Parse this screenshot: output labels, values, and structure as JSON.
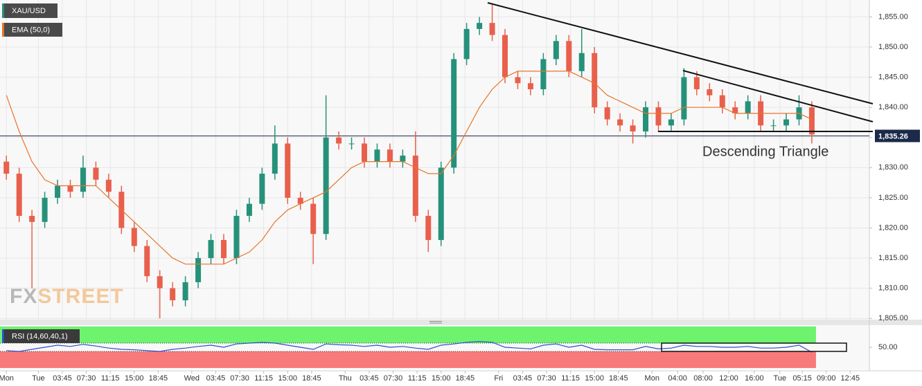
{
  "chart_data": {
    "type": "candlestick",
    "symbol": "XAU/USD",
    "indicator": "EMA (50,0)",
    "rsi_label": "RSI (14,60,40,1)",
    "annotation": "Descending Triangle",
    "watermark": {
      "prefix": "FX",
      "suffix": "STREET"
    },
    "up_color": "#26917a",
    "down_color": "#e8604c",
    "ema_color": "#e8742a",
    "rsi_color": "#2a4fd0",
    "grid": true,
    "xlim": [
      -6,
      130
    ],
    "ylim": [
      1804.8,
      1857.8
    ],
    "rsi_ylim": [
      0,
      100
    ],
    "rsi_levels": [
      40,
      60
    ],
    "last_price": {
      "value": 1835.26,
      "label": "1,835.26"
    },
    "xticks": [
      {
        "value": -5,
        "label": "Mon"
      },
      {
        "value": 0,
        "label": "Tue"
      },
      {
        "value": 3.75,
        "label": "03:45"
      },
      {
        "value": 7.5,
        "label": "07:30"
      },
      {
        "value": 11.25,
        "label": "11:15"
      },
      {
        "value": 15,
        "label": "15:00"
      },
      {
        "value": 18.75,
        "label": "18:45"
      },
      {
        "value": 24,
        "label": "Wed"
      },
      {
        "value": 27.75,
        "label": "03:45"
      },
      {
        "value": 31.5,
        "label": "07:30"
      },
      {
        "value": 35.25,
        "label": "11:15"
      },
      {
        "value": 39,
        "label": "15:00"
      },
      {
        "value": 42.75,
        "label": "18:45"
      },
      {
        "value": 48,
        "label": "Thu"
      },
      {
        "value": 51.75,
        "label": "03:45"
      },
      {
        "value": 55.5,
        "label": "07:30"
      },
      {
        "value": 59.25,
        "label": "11:15"
      },
      {
        "value": 63,
        "label": "15:00"
      },
      {
        "value": 66.75,
        "label": "18:45"
      },
      {
        "value": 72,
        "label": "Fri"
      },
      {
        "value": 75.75,
        "label": "03:45"
      },
      {
        "value": 79.5,
        "label": "07:30"
      },
      {
        "value": 83.25,
        "label": "11:15"
      },
      {
        "value": 87,
        "label": "15:00"
      },
      {
        "value": 90.75,
        "label": "18:45"
      },
      {
        "value": 96,
        "label": "Mon"
      },
      {
        "value": 100,
        "label": "04:00"
      },
      {
        "value": 104,
        "label": "08:00"
      },
      {
        "value": 108,
        "label": "12:00"
      },
      {
        "value": 112,
        "label": "16:00"
      },
      {
        "value": 116,
        "label": "Tue"
      },
      {
        "value": 119.5,
        "label": "05:15"
      },
      {
        "value": 123.25,
        "label": "09:00"
      },
      {
        "value": 127,
        "label": "12:45"
      }
    ],
    "yticks": [
      {
        "value": 1805,
        "label": "1,805.00"
      },
      {
        "value": 1810,
        "label": "1,810.00"
      },
      {
        "value": 1815,
        "label": "1,815.00"
      },
      {
        "value": 1820,
        "label": "1,820.00"
      },
      {
        "value": 1825,
        "label": "1,825.00"
      },
      {
        "value": 1830,
        "label": "1,830.00"
      },
      {
        "value": 1835,
        "label": "1,835.00"
      },
      {
        "value": 1840,
        "label": "1,840.00"
      },
      {
        "value": 1845,
        "label": "1,845.00"
      },
      {
        "value": 1850,
        "label": "1,850.00"
      },
      {
        "value": 1855,
        "label": "1,855.00"
      }
    ],
    "rsi_yticks": [
      {
        "value": 50,
        "label": "50.00"
      }
    ],
    "x": [
      -5,
      -3,
      -1,
      1,
      3,
      5,
      7,
      9,
      11,
      13,
      15,
      17,
      19,
      21,
      23,
      25,
      27,
      29,
      31,
      33,
      35,
      37,
      39,
      41,
      43,
      45,
      47,
      49,
      51,
      53,
      55,
      57,
      59,
      61,
      63,
      65,
      67,
      69,
      71,
      73,
      75,
      77,
      79,
      81,
      83,
      85,
      87,
      89,
      91,
      93,
      95,
      97,
      99,
      101,
      103,
      105,
      107,
      109,
      111,
      113,
      115,
      117,
      119,
      121
    ],
    "open": [
      1831,
      1829,
      1822,
      1821,
      1825,
      1827,
      1826,
      1830,
      1828,
      1826,
      1820,
      1817,
      1812,
      1810,
      1808,
      1811,
      1815,
      1818,
      1815,
      1822,
      1824,
      1829,
      1834,
      1825,
      1824,
      1819,
      1835,
      1834,
      1834,
      1831,
      1833,
      1831,
      1832,
      1822,
      1818,
      1830,
      1848,
      1853,
      1854,
      1852,
      1845,
      1844,
      1843,
      1848,
      1851,
      1846,
      1849,
      1840,
      1838,
      1837,
      1836,
      1840,
      1837,
      1838,
      1845,
      1843,
      1842,
      1840,
      1839,
      1841,
      1837,
      1837,
      1838,
      1840
    ],
    "high": [
      1832,
      1830,
      1823,
      1826,
      1828,
      1828,
      1832,
      1831,
      1829,
      1827,
      1821,
      1818,
      1813,
      1811,
      1812,
      1816,
      1819,
      1819,
      1823,
      1825,
      1830,
      1837,
      1835,
      1826,
      1825,
      1842,
      1836,
      1835,
      1835,
      1834,
      1834,
      1833,
      1836,
      1823,
      1831,
      1849,
      1854,
      1855,
      1857,
      1853,
      1846,
      1845,
      1849,
      1852,
      1852,
      1853,
      1850,
      1841,
      1839,
      1838,
      1841,
      1841,
      1839,
      1846.5,
      1846,
      1844,
      1843,
      1841,
      1842,
      1842,
      1838,
      1839,
      1842,
      1841
    ],
    "low": [
      1828,
      1821,
      1810,
      1820,
      1824,
      1825,
      1825,
      1827,
      1825,
      1819,
      1816,
      1811,
      1805,
      1807,
      1807,
      1810,
      1814,
      1814,
      1814,
      1821,
      1823,
      1828,
      1824,
      1823,
      1814,
      1818,
      1833,
      1833,
      1830,
      1830,
      1830,
      1830,
      1821,
      1816,
      1817,
      1829,
      1847,
      1852,
      1851,
      1844,
      1843,
      1842,
      1842,
      1847,
      1845,
      1845,
      1839,
      1837,
      1836,
      1834,
      1835,
      1836,
      1836,
      1837,
      1842,
      1841,
      1839,
      1838,
      1838,
      1836,
      1836,
      1836,
      1837,
      1834
    ],
    "close": [
      1829,
      1822,
      1821,
      1825,
      1827,
      1826,
      1830,
      1828,
      1826,
      1820,
      1817,
      1812,
      1810,
      1808,
      1811,
      1815,
      1818,
      1815,
      1822,
      1824,
      1829,
      1834,
      1825,
      1824,
      1819,
      1835,
      1834,
      1834,
      1831,
      1833,
      1831,
      1832,
      1822,
      1818,
      1830,
      1848,
      1853,
      1854,
      1852,
      1845,
      1844,
      1843,
      1848,
      1851,
      1846,
      1849,
      1840,
      1838,
      1837,
      1836,
      1840,
      1837,
      1838,
      1845,
      1843,
      1842,
      1840,
      1839,
      1841,
      1837,
      1837,
      1838,
      1840,
      1835.5
    ],
    "ema": [
      1842,
      1836,
      1831,
      1828,
      1827,
      1827,
      1827,
      1827,
      1825,
      1823,
      1821,
      1819,
      1817,
      1815,
      1814,
      1814,
      1814,
      1814,
      1815,
      1816,
      1818,
      1821,
      1823,
      1824,
      1825,
      1826,
      1828,
      1830,
      1831,
      1831,
      1831,
      1831,
      1830,
      1829,
      1829,
      1832,
      1836,
      1840,
      1843,
      1845,
      1846,
      1846,
      1846,
      1846,
      1846,
      1845,
      1844,
      1842,
      1841,
      1840,
      1839,
      1839,
      1839,
      1840,
      1840,
      1840,
      1840,
      1839,
      1839,
      1839,
      1839,
      1839,
      1839,
      1838
    ],
    "rsi": [
      42,
      40,
      45,
      50,
      55,
      52,
      57,
      53,
      48,
      45,
      44,
      42,
      40,
      45,
      48,
      52,
      55,
      50,
      58,
      60,
      62,
      60,
      55,
      50,
      45,
      58,
      56,
      55,
      52,
      55,
      50,
      52,
      48,
      45,
      55,
      58,
      62,
      64,
      62,
      50,
      48,
      46,
      55,
      58,
      50,
      55,
      45,
      44,
      44,
      44,
      52,
      46,
      48,
      55,
      52,
      52,
      50,
      50,
      52,
      48,
      48,
      50,
      55,
      38
    ]
  }
}
